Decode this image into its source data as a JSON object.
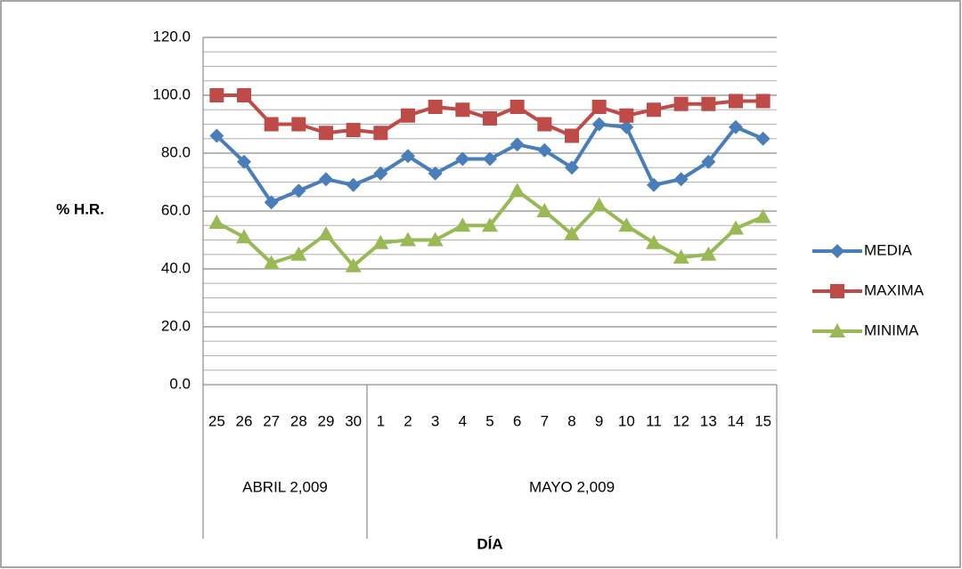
{
  "chart_data": {
    "type": "line",
    "y_label": "% H.R.",
    "x_label": "DÍA",
    "categories": [
      "25",
      "26",
      "27",
      "28",
      "29",
      "30",
      "1",
      "2",
      "3",
      "4",
      "5",
      "6",
      "7",
      "8",
      "9",
      "10",
      "11",
      "12",
      "13",
      "14",
      "15"
    ],
    "category_groups": [
      "ABRIL 2,009",
      "ABRIL 2,009",
      "ABRIL 2,009",
      "ABRIL 2,009",
      "ABRIL 2,009",
      "ABRIL 2,009",
      "MAYO 2,009",
      "MAYO 2,009",
      "MAYO 2,009",
      "MAYO 2,009",
      "MAYO 2,009",
      "MAYO 2,009",
      "MAYO 2,009",
      "MAYO 2,009",
      "MAYO 2,009",
      "MAYO 2,009",
      "MAYO 2,009",
      "MAYO 2,009",
      "MAYO 2,009",
      "MAYO 2,009",
      "MAYO 2,009"
    ],
    "series": [
      {
        "name": "MEDIA",
        "color": "#4a7ebb",
        "marker": "diamond",
        "values": [
          86,
          77,
          63,
          67,
          71,
          69,
          73,
          79,
          73,
          78,
          78,
          83,
          81,
          75,
          90,
          89,
          69,
          71,
          77,
          89,
          85
        ]
      },
      {
        "name": "MAXIMA",
        "color": "#be4b48",
        "marker": "square",
        "values": [
          100,
          100,
          90,
          90,
          87,
          88,
          87,
          93,
          96,
          95,
          92,
          96,
          90,
          86,
          96,
          93,
          95,
          97,
          97,
          98,
          98
        ]
      },
      {
        "name": "MINIMA",
        "color": "#98b954",
        "marker": "triangle",
        "values": [
          56,
          51,
          42,
          45,
          52,
          41,
          49,
          50,
          50,
          55,
          55,
          67,
          60,
          52,
          62,
          55,
          49,
          44,
          45,
          54,
          58
        ]
      }
    ],
    "ylim": [
      0,
      120
    ],
    "yticks": [
      {
        "value": 0,
        "label": "0.0"
      },
      {
        "value": 20,
        "label": "20.0"
      },
      {
        "value": 40,
        "label": "40.0"
      },
      {
        "value": 60,
        "label": "60.0"
      },
      {
        "value": 80,
        "label": "80.0"
      },
      {
        "value": 100,
        "label": "100.0"
      },
      {
        "value": 120,
        "label": "120.0"
      }
    ],
    "minor_grid_step": 5,
    "grid": true,
    "legend": "right"
  }
}
